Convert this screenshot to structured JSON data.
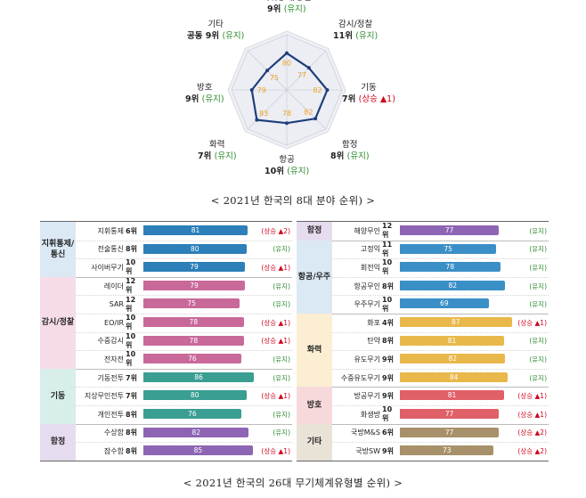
{
  "radar": {
    "axes": [
      {
        "name": "지휘통제/통신",
        "rank": "9위",
        "status": "(유지)",
        "status_type": "keep",
        "value": 80
      },
      {
        "name": "감시/정찰",
        "rank": "11위",
        "status": "(유지)",
        "status_type": "keep",
        "value": 77
      },
      {
        "name": "기동",
        "rank": "7위",
        "status": "(상승 ▲1)",
        "status_type": "up",
        "value": 82
      },
      {
        "name": "함정",
        "rank": "8위",
        "status": "(유지)",
        "status_type": "keep",
        "value": 82
      },
      {
        "name": "항공",
        "rank": "10위",
        "status": "(유지)",
        "status_type": "keep",
        "value": 78
      },
      {
        "name": "화력",
        "rank": "7위",
        "status": "(유지)",
        "status_type": "keep",
        "value": 83
      },
      {
        "name": "방호",
        "rank": "9위",
        "status": "(유지)",
        "status_type": "keep",
        "value": 79
      },
      {
        "name": "기타",
        "rank": "공동 9위",
        "status": "(유지)",
        "status_type": "keep",
        "value": 75
      }
    ]
  },
  "captions": {
    "radar": "< 2021년 한국의 8대 분야 순위) >",
    "table": "< 2021년 한국의 26대 무기체계유형별 순위) >"
  },
  "colors": {
    "radar_line": "#1f3f7a",
    "radar_dot": "#f0a020",
    "keep": "#2e8b2e",
    "up": "#d0021b"
  },
  "chart_data": {
    "type": "bar",
    "title": "< 2021년 한국의 26대 무기체계유형별 순위) >",
    "groups": [
      {
        "name": "지휘통제/\n통신",
        "bg": "#dbe9f5",
        "bar": "#2c7fb8",
        "items": [
          {
            "name": "지휘통제",
            "rank": "6위",
            "value": 81,
            "status": "(상승 ▲2)",
            "status_type": "up"
          },
          {
            "name": "전술통신",
            "rank": "8위",
            "value": 80,
            "status": "(유지)",
            "status_type": "keep"
          },
          {
            "name": "사이버무기",
            "rank": "10위",
            "value": 79,
            "status": "(상승 ▲1)",
            "status_type": "up"
          }
        ]
      },
      {
        "name": "감시/정찰",
        "bg": "#f5dce8",
        "bar": "#c8699a",
        "items": [
          {
            "name": "레이더",
            "rank": "12위",
            "value": 79,
            "status": "(유지)",
            "status_type": "keep"
          },
          {
            "name": "SAR",
            "rank": "12위",
            "value": 75,
            "status": "(유지)",
            "status_type": "keep"
          },
          {
            "name": "EO/IR",
            "rank": "10위",
            "value": 78,
            "status": "(상승 ▲1)",
            "status_type": "up"
          },
          {
            "name": "수중감시",
            "rank": "10위",
            "value": 78,
            "status": "(상승 ▲1)",
            "status_type": "up"
          },
          {
            "name": "전자전",
            "rank": "10위",
            "value": 76,
            "status": "(유지)",
            "status_type": "keep"
          }
        ]
      },
      {
        "name": "기동",
        "bg": "#d8eeeb",
        "bar": "#3a9e93",
        "items": [
          {
            "name": "기동전투",
            "rank": "7위",
            "value": 86,
            "status": "(유지)",
            "status_type": "keep"
          },
          {
            "name": "지상무인전투",
            "rank": "7위",
            "value": 80,
            "status": "(상승 ▲1)",
            "status_type": "up"
          },
          {
            "name": "개인전투",
            "rank": "8위",
            "value": 76,
            "status": "(유지)",
            "status_type": "keep"
          }
        ]
      },
      {
        "name": "함정",
        "bg": "#e6dcef",
        "bar": "#8e64b4",
        "items": [
          {
            "name": "수상함",
            "rank": "8위",
            "value": 82,
            "status": "(유지)",
            "status_type": "keep"
          },
          {
            "name": "잠수함",
            "rank": "8위",
            "value": 85,
            "status": "(상승 ▲1)",
            "status_type": "up"
          },
          {
            "name": "해양무인",
            "rank": "12위",
            "value": 77,
            "status": "(유지)",
            "status_type": "keep"
          }
        ]
      },
      {
        "name": "항공/우주",
        "bg": "#dbe9f5",
        "bar": "#3b8fc7",
        "items": [
          {
            "name": "고정익",
            "rank": "11위",
            "value": 75,
            "status": "(유지)",
            "status_type": "keep"
          },
          {
            "name": "회전익",
            "rank": "10위",
            "value": 78,
            "status": "(유지)",
            "status_type": "keep"
          },
          {
            "name": "항공무인",
            "rank": "8위",
            "value": 82,
            "status": "(유지)",
            "status_type": "keep"
          },
          {
            "name": "우주무기",
            "rank": "10위",
            "value": 69,
            "status": "(유지)",
            "status_type": "keep"
          }
        ]
      },
      {
        "name": "화력",
        "bg": "#fbeed2",
        "bar": "#e9b84a",
        "items": [
          {
            "name": "화포",
            "rank": "4위",
            "value": 87,
            "status": "(상승 ▲1)",
            "status_type": "up"
          },
          {
            "name": "탄약",
            "rank": "8위",
            "value": 81,
            "status": "(유지)",
            "status_type": "keep"
          },
          {
            "name": "유도무기",
            "rank": "9위",
            "value": 82,
            "status": "(유지)",
            "status_type": "keep"
          },
          {
            "name": "수중유도무기",
            "rank": "9위",
            "value": 84,
            "status": "(유지)",
            "status_type": "keep"
          }
        ]
      },
      {
        "name": "방호",
        "bg": "#f7d9dc",
        "bar": "#e06068",
        "items": [
          {
            "name": "방공무기",
            "rank": "9위",
            "value": 81,
            "status": "(상승 ▲1)",
            "status_type": "up"
          },
          {
            "name": "화생방",
            "rank": "10위",
            "value": 77,
            "status": "(상승 ▲1)",
            "status_type": "up"
          }
        ]
      },
      {
        "name": "기타",
        "bg": "#e9e2d6",
        "bar": "#a8916a",
        "items": [
          {
            "name": "국방M&S",
            "rank": "6위",
            "value": 77,
            "status": "(상승 ▲2)",
            "status_type": "up"
          },
          {
            "name": "국방SW",
            "rank": "9위",
            "value": 73,
            "status": "(상승 ▲2)",
            "status_type": "up"
          }
        ]
      }
    ]
  }
}
